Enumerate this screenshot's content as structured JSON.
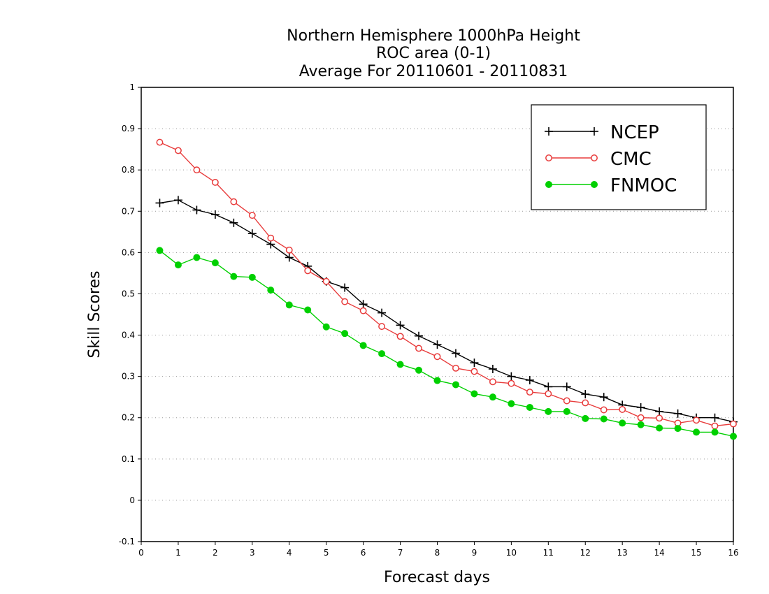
{
  "chart_data": {
    "type": "line",
    "title_lines": [
      "Northern Hemisphere 1000hPa Height",
      "ROC area (0-1)",
      "Average For 20110601 - 20110831"
    ],
    "xlabel": "Forecast days",
    "ylabel": "Skill Scores",
    "xlim": [
      0,
      16
    ],
    "ylim": [
      -0.1,
      1
    ],
    "x_ticks": [
      "0",
      "1",
      "2",
      "3",
      "4",
      "5",
      "6",
      "7",
      "8",
      "9",
      "10",
      "11",
      "12",
      "13",
      "14",
      "15",
      "16"
    ],
    "y_ticks": [
      "-0.1",
      "0",
      "0.1",
      "0.2",
      "0.3",
      "0.4",
      "0.5",
      "0.6",
      "0.7",
      "0.8",
      "0.9",
      "1"
    ],
    "grid": "horizontal dotted",
    "legend_position": "top-right",
    "x": [
      0.5,
      1,
      1.5,
      2,
      2.5,
      3,
      3.5,
      4,
      4.5,
      5,
      5.5,
      6,
      6.5,
      7,
      7.5,
      8,
      8.5,
      9,
      9.5,
      10,
      10.5,
      11,
      11.5,
      12,
      12.5,
      13,
      13.5,
      14,
      14.5,
      15,
      15.5,
      16
    ],
    "series": [
      {
        "name": "NCEP",
        "color": "#000000",
        "marker": "plus",
        "values": [
          0.72,
          0.727,
          0.703,
          0.692,
          0.672,
          0.646,
          0.62,
          0.588,
          0.567,
          0.53,
          0.515,
          0.475,
          0.454,
          0.424,
          0.398,
          0.377,
          0.356,
          0.333,
          0.318,
          0.3,
          0.291,
          0.275,
          0.275,
          0.257,
          0.25,
          0.231,
          0.225,
          0.215,
          0.21,
          0.2,
          0.2,
          0.19
        ]
      },
      {
        "name": "CMC",
        "color": "#e83c3c",
        "marker": "open-circle",
        "values": [
          0.867,
          0.847,
          0.8,
          0.77,
          0.723,
          0.69,
          0.635,
          0.606,
          0.556,
          0.53,
          0.481,
          0.459,
          0.421,
          0.397,
          0.368,
          0.348,
          0.32,
          0.312,
          0.287,
          0.283,
          0.262,
          0.258,
          0.241,
          0.236,
          0.219,
          0.22,
          0.2,
          0.199,
          0.187,
          0.194,
          0.18,
          0.185
        ]
      },
      {
        "name": "FNMOC",
        "color": "#00d000",
        "marker": "filled-circle",
        "values": [
          0.605,
          0.57,
          0.588,
          0.575,
          0.542,
          0.54,
          0.509,
          0.473,
          0.461,
          0.42,
          0.404,
          0.375,
          0.355,
          0.329,
          0.315,
          0.29,
          0.28,
          0.258,
          0.25,
          0.234,
          0.225,
          0.215,
          0.215,
          0.198,
          0.197,
          0.187,
          0.183,
          0.175,
          0.174,
          0.165,
          0.165,
          0.155
        ]
      }
    ]
  }
}
